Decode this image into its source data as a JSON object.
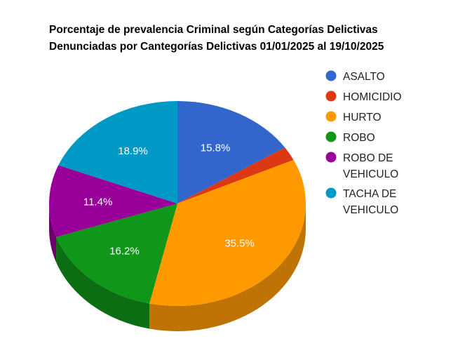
{
  "chart_data": {
    "type": "pie",
    "title_lines": [
      "Porcentaje de prevalencia Criminal según Categorías Delictivas",
      "Denunciadas por Cantegorías Delictivas 01/01/2025 al 19/10/2025"
    ],
    "three_d": true,
    "legend_position": "right",
    "slices": [
      {
        "name": "ASALTO",
        "legend_lines": [
          "ASALTO"
        ],
        "value": 15.8,
        "label": "15.8%",
        "color": "#3366cc",
        "side": "#244a94"
      },
      {
        "name": "HOMICIDIO",
        "legend_lines": [
          "HOMICIDIO"
        ],
        "value": 2.2,
        "label": "",
        "color": "#dc3912",
        "side": "#9e280d"
      },
      {
        "name": "HURTO",
        "legend_lines": [
          "HURTO"
        ],
        "value": 35.5,
        "label": "35.5%",
        "color": "#ff9900",
        "side": "#c07305"
      },
      {
        "name": "ROBO",
        "legend_lines": [
          "ROBO"
        ],
        "value": 16.2,
        "label": "16.2%",
        "color": "#109618",
        "side": "#0b6e12"
      },
      {
        "name": "ROBO DE VEHICULO",
        "legend_lines": [
          "ROBO DE",
          "VEHICULO"
        ],
        "value": 11.4,
        "label": "11.4%",
        "color": "#990099",
        "side": "#6c006c"
      },
      {
        "name": "TACHA DE VEHICULO",
        "legend_lines": [
          "TACHA DE",
          "VEHICULO"
        ],
        "value": 18.9,
        "label": "18.9%",
        "color": "#0099c6",
        "side": "#006f90"
      }
    ]
  }
}
